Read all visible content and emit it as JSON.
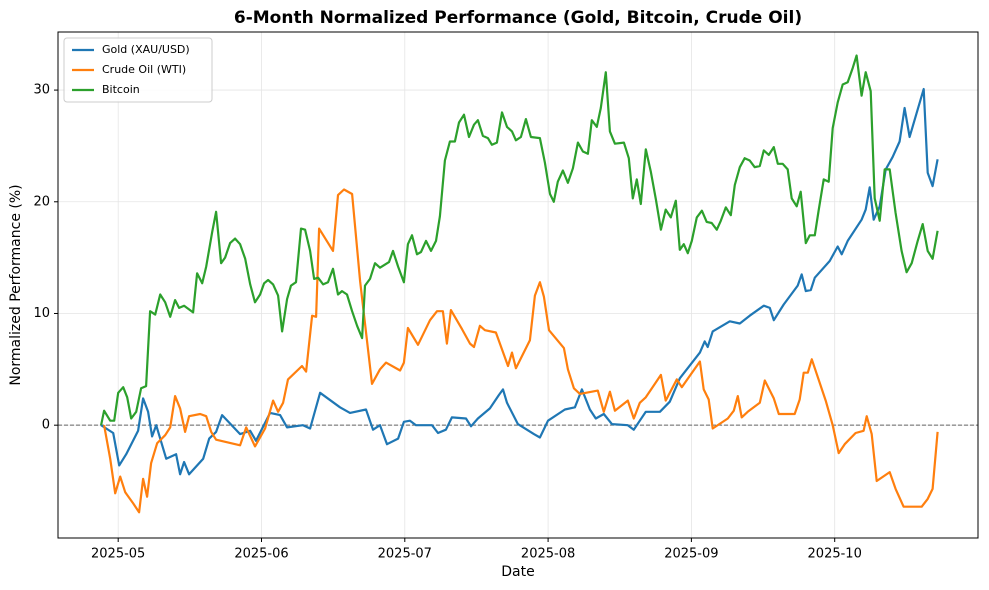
{
  "chart_data": {
    "type": "line",
    "title": "6-Month Normalized Performance (Gold, Bitcoin, Crude Oil)",
    "xlabel": "Date",
    "ylabel": "Normalized Performance (%)",
    "xlim": [
      4.58,
      11.0
    ],
    "ylim": [
      -10.1,
      35.2
    ],
    "xticks": [
      {
        "value": 5,
        "label": "2025-05"
      },
      {
        "value": 6,
        "label": "2025-06"
      },
      {
        "value": 7,
        "label": "2025-07"
      },
      {
        "value": 8,
        "label": "2025-08"
      },
      {
        "value": 9,
        "label": "2025-09"
      },
      {
        "value": 10,
        "label": "2025-10"
      }
    ],
    "yticks": [
      0,
      10,
      20,
      30
    ],
    "grid": true,
    "legend": "upper left",
    "hline": 0,
    "series": [
      {
        "name": "Gold (XAU/USD)",
        "color": "#1f77b4",
        "x": [
          4.881,
          4.965,
          5.007,
          5.056,
          5.139,
          5.174,
          5.209,
          5.237,
          5.265,
          5.335,
          5.404,
          5.432,
          5.46,
          5.495,
          5.593,
          5.635,
          5.683,
          5.725,
          5.851,
          5.921,
          5.962,
          6.06,
          6.13,
          6.179,
          6.29,
          6.339,
          6.409,
          6.548,
          6.618,
          6.729,
          6.778,
          6.827,
          6.876,
          6.953,
          6.994,
          7.036,
          7.078,
          7.19,
          7.232,
          7.287,
          7.329,
          7.427,
          7.462,
          7.51,
          7.594,
          7.657,
          7.685,
          7.713,
          7.789,
          7.901,
          7.943,
          7.999,
          8.117,
          8.187,
          8.236,
          8.292,
          8.333,
          8.389,
          8.445,
          8.556,
          8.598,
          8.64,
          8.682,
          8.78,
          8.849,
          8.919,
          9.059,
          9.093,
          9.114,
          9.149,
          9.268,
          9.338,
          9.407,
          9.505,
          9.547,
          9.575,
          9.644,
          9.742,
          9.77,
          9.798,
          9.833,
          9.861,
          9.965,
          10.021,
          10.049,
          10.091,
          10.188,
          10.216,
          10.244,
          10.272,
          10.314,
          10.356,
          10.404,
          10.453,
          10.488,
          10.523,
          10.621,
          10.649,
          10.683,
          10.718
        ],
        "values": [
          0,
          -0.7,
          -3.6,
          -2.6,
          -0.5,
          2.4,
          1.2,
          -1,
          0,
          -3,
          -2.6,
          -4.4,
          -3.3,
          -4.4,
          -3,
          -1.2,
          -0.6,
          0.9,
          -0.8,
          -0.5,
          -1.4,
          1.1,
          0.9,
          -0.2,
          0,
          -0.3,
          2.9,
          1.6,
          1.1,
          1.4,
          -0.4,
          0,
          -1.7,
          -1.2,
          0.3,
          0.4,
          0,
          0,
          -0.7,
          -0.4,
          0.7,
          0.6,
          -0.1,
          0.6,
          1.5,
          2.7,
          3.2,
          2,
          0.1,
          -0.8,
          -1.1,
          0.4,
          1.4,
          1.6,
          3.2,
          1.4,
          0.6,
          1,
          0.1,
          0,
          -0.4,
          0.4,
          1.2,
          1.2,
          2.1,
          4.2,
          6.5,
          7.5,
          7,
          8.4,
          9.3,
          9.1,
          9.8,
          10.7,
          10.5,
          9.4,
          10.8,
          12.5,
          13.5,
          12,
          12.1,
          13.2,
          14.7,
          16,
          15.3,
          16.5,
          18.4,
          19.3,
          21.3,
          18.4,
          19.6,
          22.9,
          24,
          25.4,
          28.4,
          25.8,
          30.1,
          22.6,
          21.4,
          23.8
        ]
      },
      {
        "name": "Crude Oil (WTI)",
        "color": "#ff7f0e",
        "x": [
          4.902,
          4.944,
          4.979,
          5.014,
          5.049,
          5.105,
          5.146,
          5.174,
          5.202,
          5.23,
          5.272,
          5.328,
          5.363,
          5.397,
          5.432,
          5.467,
          5.495,
          5.572,
          5.614,
          5.649,
          5.683,
          5.851,
          5.893,
          5.955,
          6.025,
          6.081,
          6.116,
          6.151,
          6.185,
          6.283,
          6.311,
          6.353,
          6.381,
          6.402,
          6.499,
          6.534,
          6.576,
          6.632,
          6.688,
          6.771,
          6.827,
          6.869,
          6.967,
          6.994,
          7.022,
          7.092,
          7.176,
          7.225,
          7.266,
          7.294,
          7.322,
          7.399,
          7.455,
          7.483,
          7.524,
          7.559,
          7.636,
          7.72,
          7.748,
          7.775,
          7.873,
          7.908,
          7.943,
          7.971,
          8.006,
          8.11,
          8.138,
          8.18,
          8.222,
          8.347,
          8.389,
          8.431,
          8.466,
          8.556,
          8.598,
          8.64,
          8.682,
          8.787,
          8.821,
          8.898,
          8.933,
          9.059,
          9.086,
          9.121,
          9.149,
          9.254,
          9.296,
          9.324,
          9.351,
          9.393,
          9.477,
          9.512,
          9.575,
          9.61,
          9.721,
          9.756,
          9.784,
          9.812,
          9.84,
          9.937,
          9.986,
          10.028,
          10.07,
          10.146,
          10.202,
          10.223,
          10.258,
          10.293,
          10.384,
          10.425,
          10.481,
          10.523,
          10.607,
          10.649,
          10.683,
          10.718
        ],
        "values": [
          0,
          -3,
          -6.1,
          -4.6,
          -6,
          -7,
          -7.8,
          -4.8,
          -6.4,
          -3.4,
          -1.6,
          -0.9,
          -0.2,
          2.6,
          1.5,
          -0.6,
          0.8,
          1,
          0.8,
          -0.6,
          -1.3,
          -1.8,
          -0.2,
          -1.9,
          -0.3,
          2.2,
          1.2,
          2,
          4.1,
          5.3,
          4.8,
          9.8,
          9.7,
          17.6,
          15.6,
          20.6,
          21.1,
          20.7,
          12.9,
          3.7,
          5,
          5.6,
          4.9,
          5.6,
          8.7,
          7.2,
          9.4,
          10.2,
          10.2,
          7.3,
          10.3,
          8.6,
          7.3,
          7,
          8.9,
          8.5,
          8.3,
          5.3,
          6.5,
          5.1,
          7.6,
          11.6,
          12.8,
          11.5,
          8.5,
          6.9,
          5,
          3.3,
          2.8,
          3.1,
          1.2,
          3,
          1.3,
          2.2,
          0.6,
          2,
          2.5,
          4.5,
          2.2,
          4.1,
          3.4,
          5.7,
          3.2,
          2.3,
          -0.3,
          0.6,
          1.3,
          2.6,
          0.7,
          1.2,
          2,
          4,
          2.4,
          1,
          1,
          2.3,
          4.7,
          4.7,
          5.9,
          2.2,
          0,
          -2.5,
          -1.7,
          -0.7,
          -0.5,
          0.8,
          -0.8,
          -5,
          -4.2,
          -5.7,
          -7.3,
          -7.3,
          -7.3,
          -6.6,
          -5.7,
          -0.6
        ]
      },
      {
        "name": "Bitcoin",
        "color": "#2ca02c",
        "x": [
          4.881,
          4.902,
          4.944,
          4.972,
          5.0,
          5.035,
          5.063,
          5.091,
          5.126,
          5.16,
          5.195,
          5.223,
          5.258,
          5.293,
          5.328,
          5.363,
          5.397,
          5.425,
          5.46,
          5.523,
          5.551,
          5.586,
          5.614,
          5.656,
          5.683,
          5.718,
          5.746,
          5.781,
          5.816,
          5.851,
          5.886,
          5.921,
          5.955,
          5.99,
          6.018,
          6.046,
          6.081,
          6.116,
          6.144,
          6.179,
          6.206,
          6.241,
          6.276,
          6.304,
          6.339,
          6.367,
          6.395,
          6.43,
          6.464,
          6.499,
          6.534,
          6.562,
          6.597,
          6.632,
          6.667,
          6.702,
          6.722,
          6.757,
          6.792,
          6.827,
          6.89,
          6.918,
          6.953,
          6.994,
          7.022,
          7.05,
          7.085,
          7.113,
          7.148,
          7.183,
          7.218,
          7.245,
          7.28,
          7.315,
          7.35,
          7.378,
          7.413,
          7.448,
          7.483,
          7.51,
          7.545,
          7.58,
          7.608,
          7.643,
          7.678,
          7.713,
          7.748,
          7.775,
          7.81,
          7.845,
          7.88,
          7.943,
          7.978,
          8.013,
          8.04,
          8.068,
          8.103,
          8.138,
          8.173,
          8.208,
          8.243,
          8.278,
          8.305,
          8.34,
          8.368,
          8.403,
          8.431,
          8.466,
          8.529,
          8.563,
          8.591,
          8.619,
          8.647,
          8.682,
          8.717,
          8.752,
          8.787,
          8.821,
          8.856,
          8.891,
          8.919,
          8.947,
          8.975,
          9.003,
          9.038,
          9.073,
          9.107,
          9.142,
          9.177,
          9.205,
          9.24,
          9.275,
          9.303,
          9.338,
          9.372,
          9.407,
          9.442,
          9.477,
          9.505,
          9.54,
          9.575,
          9.603,
          9.637,
          9.672,
          9.7,
          9.735,
          9.763,
          9.798,
          9.826,
          9.861,
          9.888,
          9.923,
          9.958,
          9.986,
          10.021,
          10.056,
          10.091,
          10.126,
          10.153,
          10.188,
          10.216,
          10.251,
          10.279,
          10.314,
          10.349,
          10.384,
          10.425,
          10.467,
          10.502,
          10.537,
          10.579,
          10.614,
          10.649,
          10.683,
          10.718
        ],
        "values": [
          0,
          1.3,
          0.4,
          0.4,
          2.9,
          3.4,
          2.5,
          0.6,
          1.2,
          3.3,
          3.5,
          10.2,
          9.9,
          11.7,
          11,
          9.7,
          11.2,
          10.5,
          10.7,
          10.1,
          13.6,
          12.7,
          14.2,
          17.3,
          19.1,
          14.5,
          15,
          16.3,
          16.7,
          16.2,
          14.9,
          12.6,
          11,
          11.7,
          12.7,
          13,
          12.6,
          11.6,
          8.4,
          11.3,
          12.5,
          12.8,
          17.6,
          17.5,
          15.6,
          13.1,
          13.2,
          12.6,
          12.8,
          14,
          11.7,
          12,
          11.7,
          10.2,
          8.9,
          7.8,
          12.5,
          13.1,
          14.5,
          14.1,
          14.6,
          15.6,
          14.2,
          12.8,
          16.2,
          17,
          15.3,
          15.5,
          16.5,
          15.6,
          16.5,
          18.7,
          23.7,
          25.4,
          25.4,
          27.1,
          27.8,
          25.8,
          26.9,
          27.3,
          25.9,
          25.7,
          25.1,
          25.3,
          28,
          26.7,
          26.3,
          25.5,
          25.8,
          27.4,
          25.8,
          25.7,
          23.5,
          20.7,
          20,
          21.8,
          22.8,
          21.7,
          23,
          25.3,
          24.5,
          24.3,
          27.3,
          26.7,
          28.4,
          31.6,
          26.3,
          25.2,
          25.3,
          23.9,
          20.3,
          22,
          19.8,
          24.7,
          22.7,
          20.2,
          17.5,
          19.3,
          18.6,
          20.1,
          15.7,
          16.2,
          15.4,
          16.5,
          18.6,
          19.2,
          18.2,
          18.1,
          17.5,
          18.3,
          19.5,
          18.8,
          21.5,
          23.1,
          23.9,
          23.7,
          23.1,
          23.2,
          24.6,
          24.2,
          24.9,
          23.4,
          23.4,
          22.9,
          20.3,
          19.6,
          20.9,
          16.3,
          17,
          17,
          19.2,
          22,
          21.8,
          26.6,
          28.9,
          30.5,
          30.7,
          32,
          33.1,
          29.5,
          31.6,
          29.9,
          20.3,
          18.3,
          22.9,
          22.9,
          19,
          15.6,
          13.7,
          14.5,
          16.5,
          18,
          15.6,
          14.9,
          17.4
        ]
      }
    ]
  }
}
